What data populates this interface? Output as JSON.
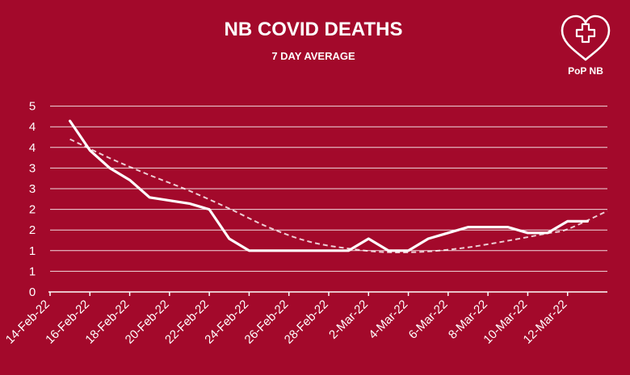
{
  "chart_data": {
    "type": "line",
    "title": "NB COVID DEATHS",
    "subtitle": "7 DAY AVERAGE",
    "xlabel": "",
    "ylabel": "",
    "ylim": [
      0,
      5
    ],
    "yticks": [
      0,
      0.5,
      1,
      1.5,
      2,
      2.5,
      3,
      3.5,
      4,
      4.5
    ],
    "ytick_labels": [
      "0",
      "1",
      "1",
      "2",
      "2",
      "3",
      "3",
      "4",
      "4",
      "5"
    ],
    "x_range": [
      "14-Feb-22",
      "13-Mar-22"
    ],
    "xtick_labels": [
      "14-Feb-22",
      "16-Feb-22",
      "18-Feb-22",
      "20-Feb-22",
      "22-Feb-22",
      "24-Feb-22",
      "26-Feb-22",
      "28-Feb-22",
      "2-Mar-22",
      "4-Mar-22",
      "6-Mar-22",
      "8-Mar-22",
      "10-Mar-22",
      "12-Mar-22"
    ],
    "grid": true,
    "series": [
      {
        "style": "solid",
        "x": [
          "15-Feb-22",
          "16-Feb-22",
          "17-Feb-22",
          "18-Feb-22",
          "19-Feb-22",
          "21-Feb-22",
          "22-Feb-22",
          "23-Feb-22",
          "24-Feb-22",
          "25-Feb-22",
          "26-Feb-22",
          "27-Feb-22",
          "28-Feb-22",
          "1-Mar-22",
          "2-Mar-22",
          "3-Mar-22",
          "4-Mar-22",
          "5-Mar-22",
          "6-Mar-22",
          "7-Mar-22",
          "8-Mar-22",
          "9-Mar-22",
          "10-Mar-22",
          "11-Mar-22",
          "12-Mar-22",
          "13-Mar-22"
        ],
        "values": [
          4.14,
          3.43,
          3.0,
          2.71,
          2.29,
          2.14,
          2.0,
          1.29,
          1.0,
          1.0,
          1.0,
          1.0,
          1.0,
          1.0,
          1.29,
          1.0,
          1.0,
          1.29,
          1.43,
          1.57,
          1.57,
          1.57,
          1.43,
          1.43,
          1.71,
          1.71
        ]
      },
      {
        "style": "dashed",
        "x": [
          "15-Feb-22",
          "17-Feb-22",
          "19-Feb-22",
          "21-Feb-22",
          "23-Feb-22",
          "25-Feb-22",
          "27-Feb-22",
          "1-Mar-22",
          "3-Mar-22",
          "5-Mar-22",
          "7-Mar-22",
          "9-Mar-22",
          "11-Mar-22",
          "12-Mar-22",
          "14-Mar-22"
        ],
        "values": [
          3.7,
          3.24,
          2.83,
          2.45,
          2.02,
          1.56,
          1.22,
          1.05,
          0.96,
          0.98,
          1.08,
          1.24,
          1.42,
          1.52,
          1.96
        ]
      }
    ]
  },
  "logo": {
    "text": "PoP NB",
    "icon": "heart-plus-icon"
  }
}
